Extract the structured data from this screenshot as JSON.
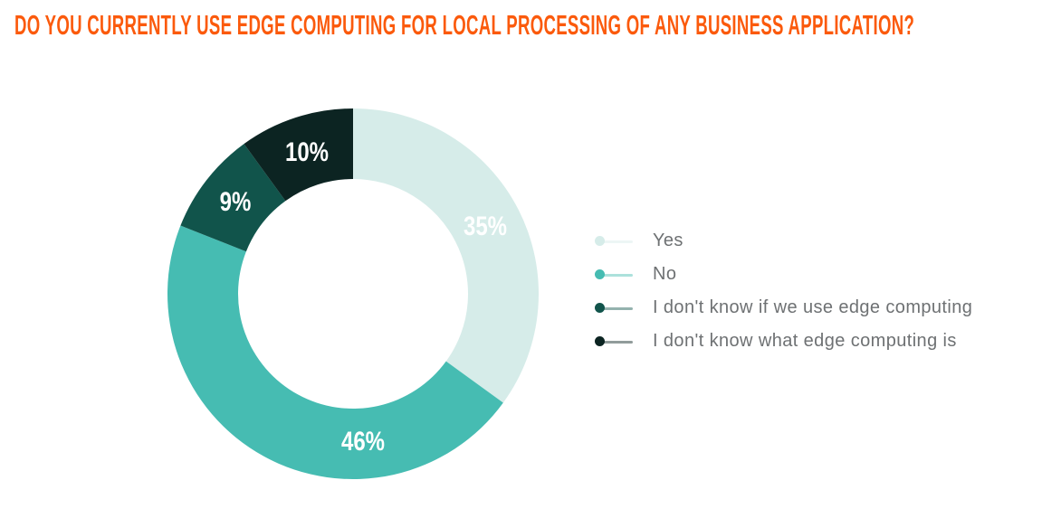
{
  "chart_data": {
    "type": "pie",
    "subtype": "donut",
    "title": "DO YOU CURRENTLY USE EDGE COMPUTING FOR LOCAL PROCESSING OF ANY BUSINESS APPLICATION?",
    "title_color": "#fb5a0c",
    "categories": [
      "Yes",
      "No",
      "I don't know if we use edge computing",
      "I don't know what edge computing is"
    ],
    "values": [
      35,
      46,
      9,
      10
    ],
    "unit": "%",
    "labels": [
      "35%",
      "46%",
      "9%",
      "10%"
    ],
    "colors": [
      "#d6ece9",
      "#46bcb2",
      "#11544b",
      "#0c2422"
    ],
    "slice_label_color": "#ffffff",
    "start_angle_deg": 0,
    "direction": "clockwise",
    "donut_hole_ratio": 0.62,
    "legend_position": "right"
  },
  "legend": {
    "items": [
      {
        "label": "Yes",
        "color": "#d6ece9"
      },
      {
        "label": "No",
        "color": "#46bcb2"
      },
      {
        "label": "I don't know if we use edge computing",
        "color": "#11544b"
      },
      {
        "label": "I don't know what edge computing is",
        "color": "#0c2422"
      }
    ],
    "text_color": "#6e7173"
  }
}
